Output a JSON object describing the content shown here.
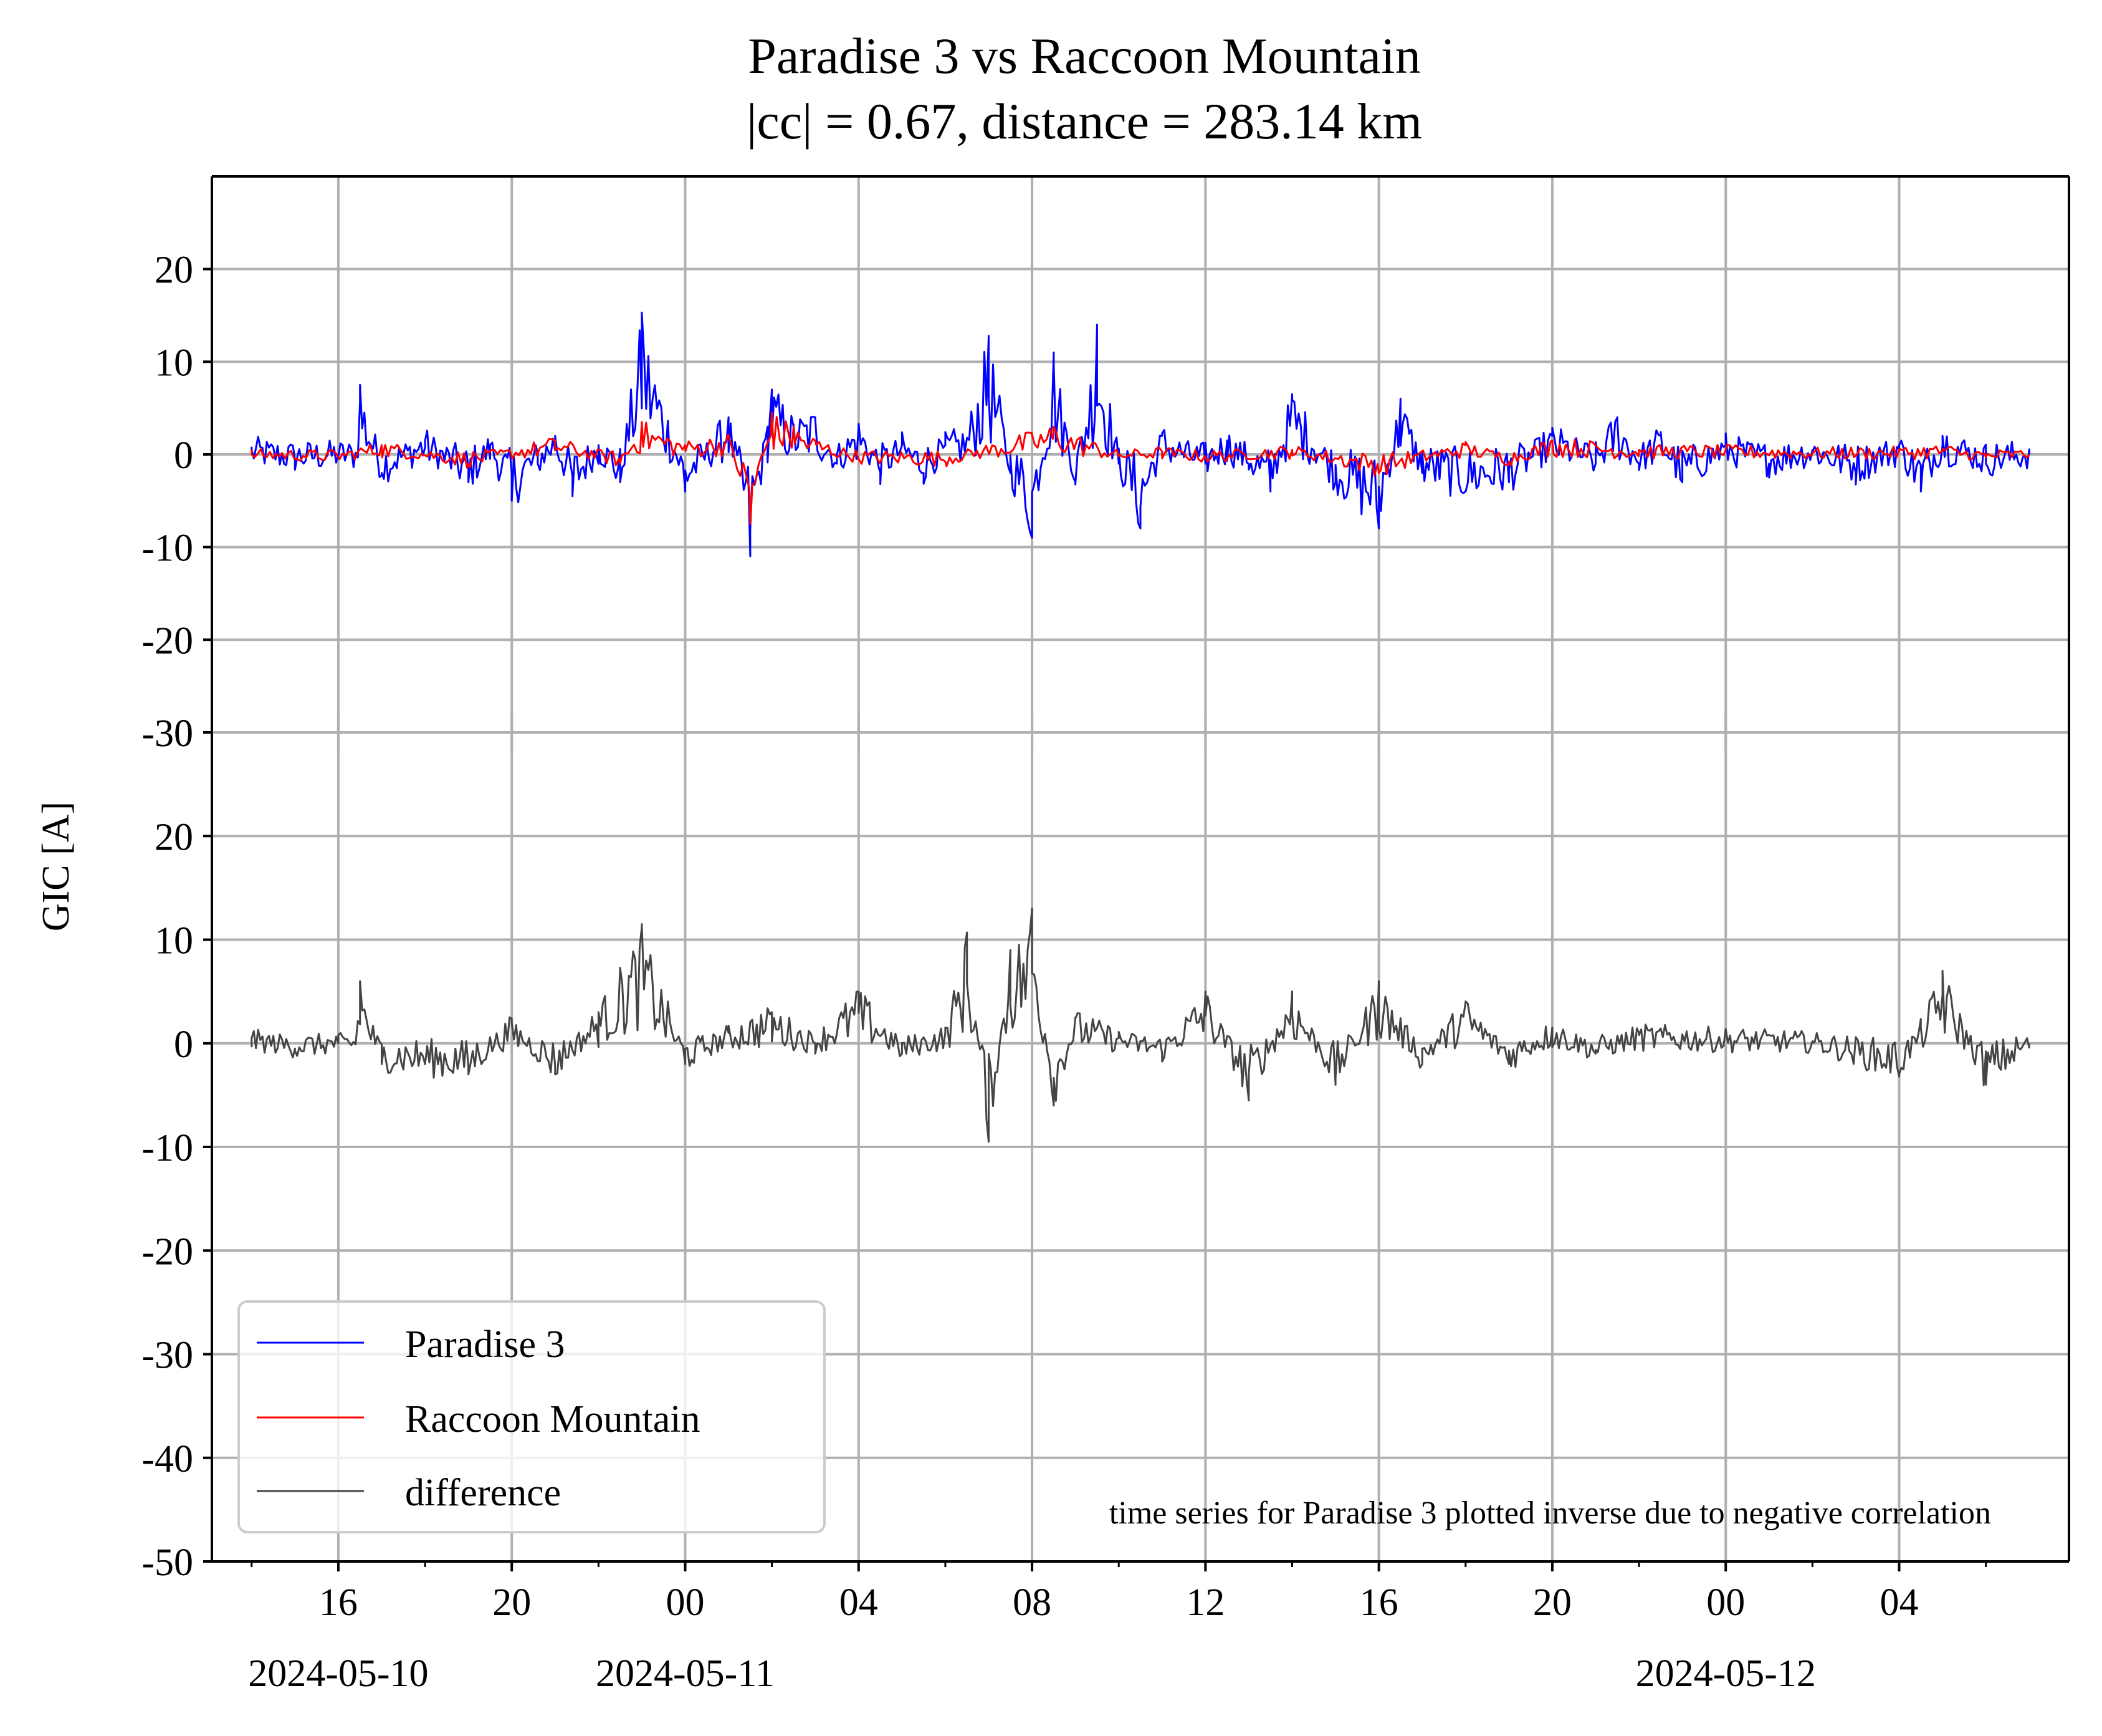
{
  "title_line1": "Paradise 3 vs Raccoon Mountain",
  "title_line2": "|cc| = 0.67, distance = 283.14 km",
  "colors": {
    "paradise": "#0000ff",
    "raccoon": "#ff0000",
    "difference": "#444444",
    "grid": "#b0b0b0"
  },
  "chart_data": {
    "type": "line",
    "ylabel": "GIC [A]",
    "shared_x": true,
    "x_start": "2024-05-10 14:00",
    "x_end": "2024-05-12 06:00",
    "xlim": [
      "2024-05-10 13:05",
      "2024-05-12 07:55"
    ],
    "x_ticks": [
      "16",
      "20",
      "00",
      "04",
      "08",
      "12",
      "16",
      "20",
      "00",
      "04"
    ],
    "x_date_labels": [
      {
        "at": "16",
        "label": "2024-05-10"
      },
      {
        "at": "00",
        "label": "2024-05-11"
      },
      {
        "at": "00",
        "label": "2024-05-12"
      }
    ],
    "grid": true,
    "legend": {
      "location": "lower-left",
      "entries": [
        "Paradise 3",
        "Raccoon Mountain",
        "difference"
      ]
    },
    "annotation": "time series for Paradise 3 plotted inverse due to negative correlation",
    "panels": [
      {
        "ylim": [
          -30,
          30
        ],
        "y_ticks": [
          "20",
          "10",
          "0",
          "-10",
          "-20",
          "-30"
        ],
        "series": [
          {
            "name": "Paradise 3",
            "color": "#0000ff",
            "x_hours": [
              0,
              1,
              2,
              2.4,
              2.5,
              3,
              4,
              5,
              5.5,
              6,
              6.6,
              7,
              7.4,
              8,
              8.5,
              9,
              10,
              11,
              11.5,
              11.9,
              12,
              12.5,
              13,
              13.5,
              14,
              14.5,
              15,
              15.5,
              16,
              16.5,
              17,
              17.5,
              18,
              18.5,
              19,
              19.5,
              20,
              20.5,
              21,
              21.5,
              22,
              22.5,
              23,
              23.5,
              24,
              25,
              26,
              26.5,
              27,
              28,
              29,
              30,
              31,
              31.5,
              32,
              32.5,
              33,
              34,
              35,
              36,
              37,
              38,
              38.5,
              39,
              40,
              41
            ],
            "values": [
              0.5,
              -0.5,
              0,
              -0.2,
              7.5,
              -2,
              1.5,
              -3,
              1,
              -5,
              -1,
              2,
              -4.5,
              1,
              -3,
              15.3,
              -4,
              4,
              -11,
              3,
              7,
              3,
              4,
              -1,
              3,
              -2,
              1,
              -2,
              1,
              1.8,
              12.8,
              -2,
              -9,
              11,
              -3,
              14,
              -1,
              -8,
              2,
              0,
              -1,
              1.5,
              -1,
              -4,
              6.5,
              -3,
              -8,
              6,
              -2,
              -4,
              -3,
              2,
              -1,
              4,
              -1,
              2,
              -3,
              1,
              -1,
              0.5,
              -2,
              1,
              -4,
              2,
              -1,
              0
            ],
            "note": "downsampled envelope of a dense noisy signal; full series rendered with synthetic fill"
          },
          {
            "name": "Raccoon Mountain",
            "color": "#ff0000",
            "x_hours": [
              0,
              2,
              3,
              5,
              7,
              8.5,
              9,
              10,
              11,
              11.5,
              12,
              12.5,
              13,
              14,
              16,
              18.5,
              20,
              21,
              22,
              24,
              26,
              28,
              29,
              30,
              32,
              34,
              36,
              38,
              39,
              40,
              41
            ],
            "values": [
              0,
              -0.3,
              1,
              -1,
              1.5,
              -1,
              3.5,
              1,
              2,
              -7.5,
              4.5,
              3,
              1.5,
              -0.5,
              -0.8,
              3,
              -0.2,
              0.3,
              -0.4,
              0.5,
              -2,
              1,
              -0.8,
              1.5,
              0.5,
              0.5,
              0.2,
              0.3,
              0.6,
              -0.3,
              0
            ],
            "note": "smoother series tracking Paradise 3 at reduced amplitude"
          }
        ]
      },
      {
        "ylim": [
          -50,
          30
        ],
        "y_ticks": [
          "30",
          "20",
          "10",
          "0",
          "-10",
          "-20",
          "-30",
          "-40",
          "-50"
        ],
        "series": [
          {
            "name": "difference",
            "color": "#444444",
            "x_hours": [
              0,
              1,
              2,
              2.4,
              2.5,
              3,
              5,
              6,
              7,
              8,
              9,
              10,
              11,
              12,
              13,
              14,
              15,
              16,
              16.5,
              17,
              17.5,
              18,
              18.5,
              19,
              20,
              21,
              22,
              23,
              24,
              25,
              26,
              27,
              28,
              29,
              30,
              31,
              32,
              36,
              38,
              38.5,
              39,
              40,
              41
            ],
            "values": [
              0.5,
              -0.5,
              0,
              0,
              6,
              -2,
              -3,
              2,
              -3,
              3,
              11.5,
              -2,
              1,
              3,
              0,
              5,
              -1,
              1,
              10.7,
              -9.5,
              9,
              13,
              -6,
              2.5,
              0.5,
              -1,
              5,
              -5.5,
              5,
              -4,
              6,
              -2,
              4,
              -2,
              1.5,
              -1,
              1,
              0.2,
              -3,
              1.5,
              7,
              -4,
              0
            ]
          }
        ]
      }
    ]
  }
}
